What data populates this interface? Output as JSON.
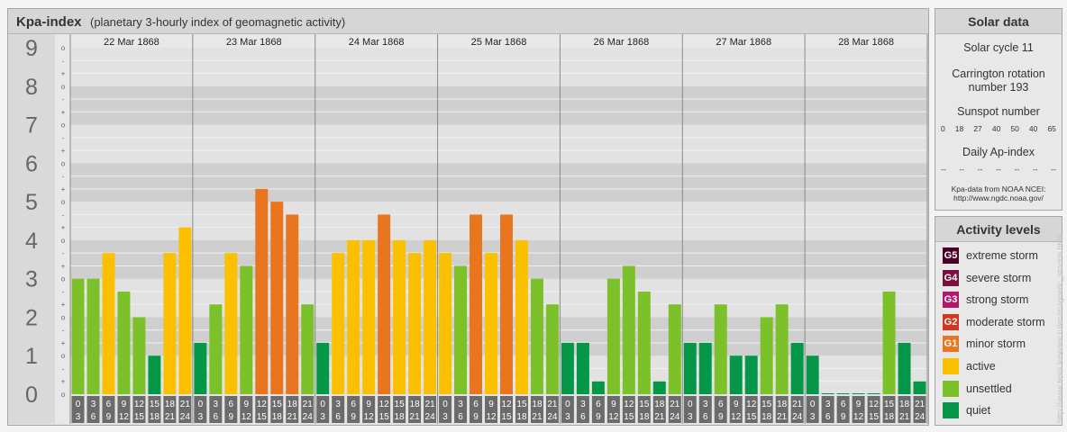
{
  "title": "Kpa-index",
  "subtitle": "(planetary 3-hourly index of geomagnetic activity)",
  "chart_data": {
    "type": "bar",
    "title": "Kpa-index",
    "subtitle": "(planetary 3-hourly index of geomagnetic activity)",
    "ylim": [
      0,
      9
    ],
    "y_ticks": [
      "0",
      "1",
      "2",
      "3",
      "4",
      "5",
      "6",
      "7",
      "8",
      "9"
    ],
    "sub_ticks": [
      "o",
      "+",
      "-"
    ],
    "days": [
      "22 Mar 1868",
      "23 Mar 1868",
      "24 Mar 1868",
      "25 Mar 1868",
      "26 Mar 1868",
      "27 Mar 1868",
      "28 Mar 1868"
    ],
    "interval_start": [
      "0",
      "3",
      "6",
      "9",
      "12",
      "15",
      "18",
      "21"
    ],
    "interval_end": [
      "3",
      "6",
      "9",
      "12",
      "15",
      "18",
      "21",
      "24"
    ],
    "values": [
      3,
      3,
      3.667,
      2.667,
      2,
      1,
      3.667,
      4.333,
      1.333,
      2.333,
      3.667,
      3.333,
      5.333,
      5,
      4.667,
      2.333,
      1.333,
      3.667,
      4,
      4,
      4.667,
      4,
      3.667,
      4,
      3.667,
      3.333,
      4.667,
      3.667,
      4.667,
      4,
      3,
      2.333,
      1.333,
      1.333,
      0.333,
      3,
      3.333,
      2.667,
      0.333,
      2.333,
      1.333,
      1.333,
      2.333,
      1,
      1,
      2,
      2.333,
      1.333,
      1,
      0,
      0,
      0,
      0,
      2.667,
      1.333,
      0.333
    ],
    "grid": true,
    "legend_position": "right"
  },
  "solar_data": {
    "title": "Solar data",
    "cycle": "Solar cycle 11",
    "carrington_line1": "Carrington rotation",
    "carrington_line2": "number 193",
    "sunspot_label": "Sunspot number",
    "sunspot_values": [
      "0",
      "18",
      "27",
      "40",
      "50",
      "40",
      "65"
    ],
    "ap_label": "Daily Ap-index",
    "ap_values": [
      "--",
      "--",
      "--",
      "--",
      "--",
      "--",
      "--"
    ],
    "credit_line1": "Kpa-data from NOAA NCEI:",
    "credit_line2": "http://www.ngdc.noaa.gov/"
  },
  "activity_levels": {
    "title": "Activity levels",
    "items": [
      {
        "code": "G5",
        "label": "extreme storm",
        "color": "#4a0028"
      },
      {
        "code": "G4",
        "label": "severe storm",
        "color": "#7a1040"
      },
      {
        "code": "G3",
        "label": "strong storm",
        "color": "#b0186a"
      },
      {
        "code": "G2",
        "label": "moderate storm",
        "color": "#d8341c"
      },
      {
        "code": "G1",
        "label": "minor storm",
        "color": "#e9761f"
      },
      {
        "code": "",
        "label": "active",
        "color": "#fbc101"
      },
      {
        "code": "",
        "label": "unsettled",
        "color": "#7cc02a"
      },
      {
        "code": "",
        "label": "quiet",
        "color": "#049748"
      }
    ]
  },
  "colors": {
    "quiet": "#049748",
    "unsettled": "#7cc02a",
    "active": "#fbc101",
    "minor_storm": "#e9761f",
    "moderate_storm": "#d8341c"
  },
  "watermark": "http://www.tesis.lebedev.ru/en/magnetic_storms.html"
}
